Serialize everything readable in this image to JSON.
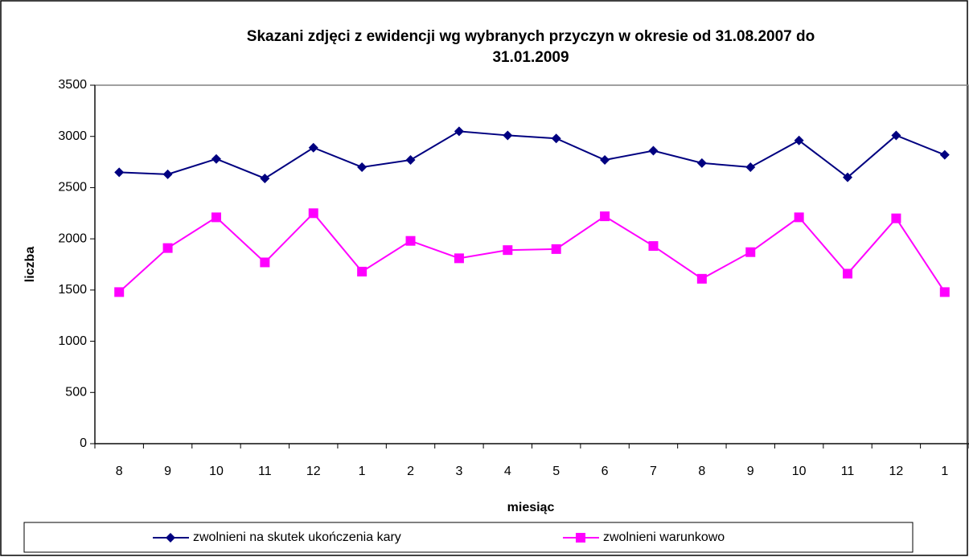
{
  "chart_data": {
    "type": "line",
    "title": [
      "Skazani zdjęci z ewidencji wg wybranych przyczyn w okresie od 31.08.2007 do",
      "31.01.2009"
    ],
    "x_label": "miesiąc",
    "y_label": "liczba",
    "categories": [
      "8",
      "9",
      "10",
      "11",
      "12",
      "1",
      "2",
      "3",
      "4",
      "5",
      "6",
      "7",
      "8",
      "9",
      "10",
      "11",
      "12",
      "1"
    ],
    "series": [
      {
        "name": "zwolnieni na skutek ukończenia kary",
        "color": "#000080",
        "marker": "diamond",
        "values": [
          2650,
          2630,
          2780,
          2590,
          2890,
          2700,
          2770,
          3050,
          3010,
          2980,
          2770,
          2860,
          2740,
          2700,
          2960,
          2600,
          3010,
          2820
        ]
      },
      {
        "name": "zwolnieni warunkowo",
        "color": "#ff00ff",
        "marker": "square",
        "values": [
          1480,
          1910,
          2210,
          1770,
          2250,
          1680,
          1980,
          1810,
          1890,
          1900,
          2220,
          1930,
          1610,
          1870,
          2210,
          1660,
          2200,
          1480
        ]
      }
    ],
    "ylim": [
      0,
      3500
    ],
    "yticks": [
      0,
      500,
      1000,
      1500,
      2000,
      2500,
      3000,
      3500
    ],
    "grid": false,
    "legend": "bottom"
  }
}
